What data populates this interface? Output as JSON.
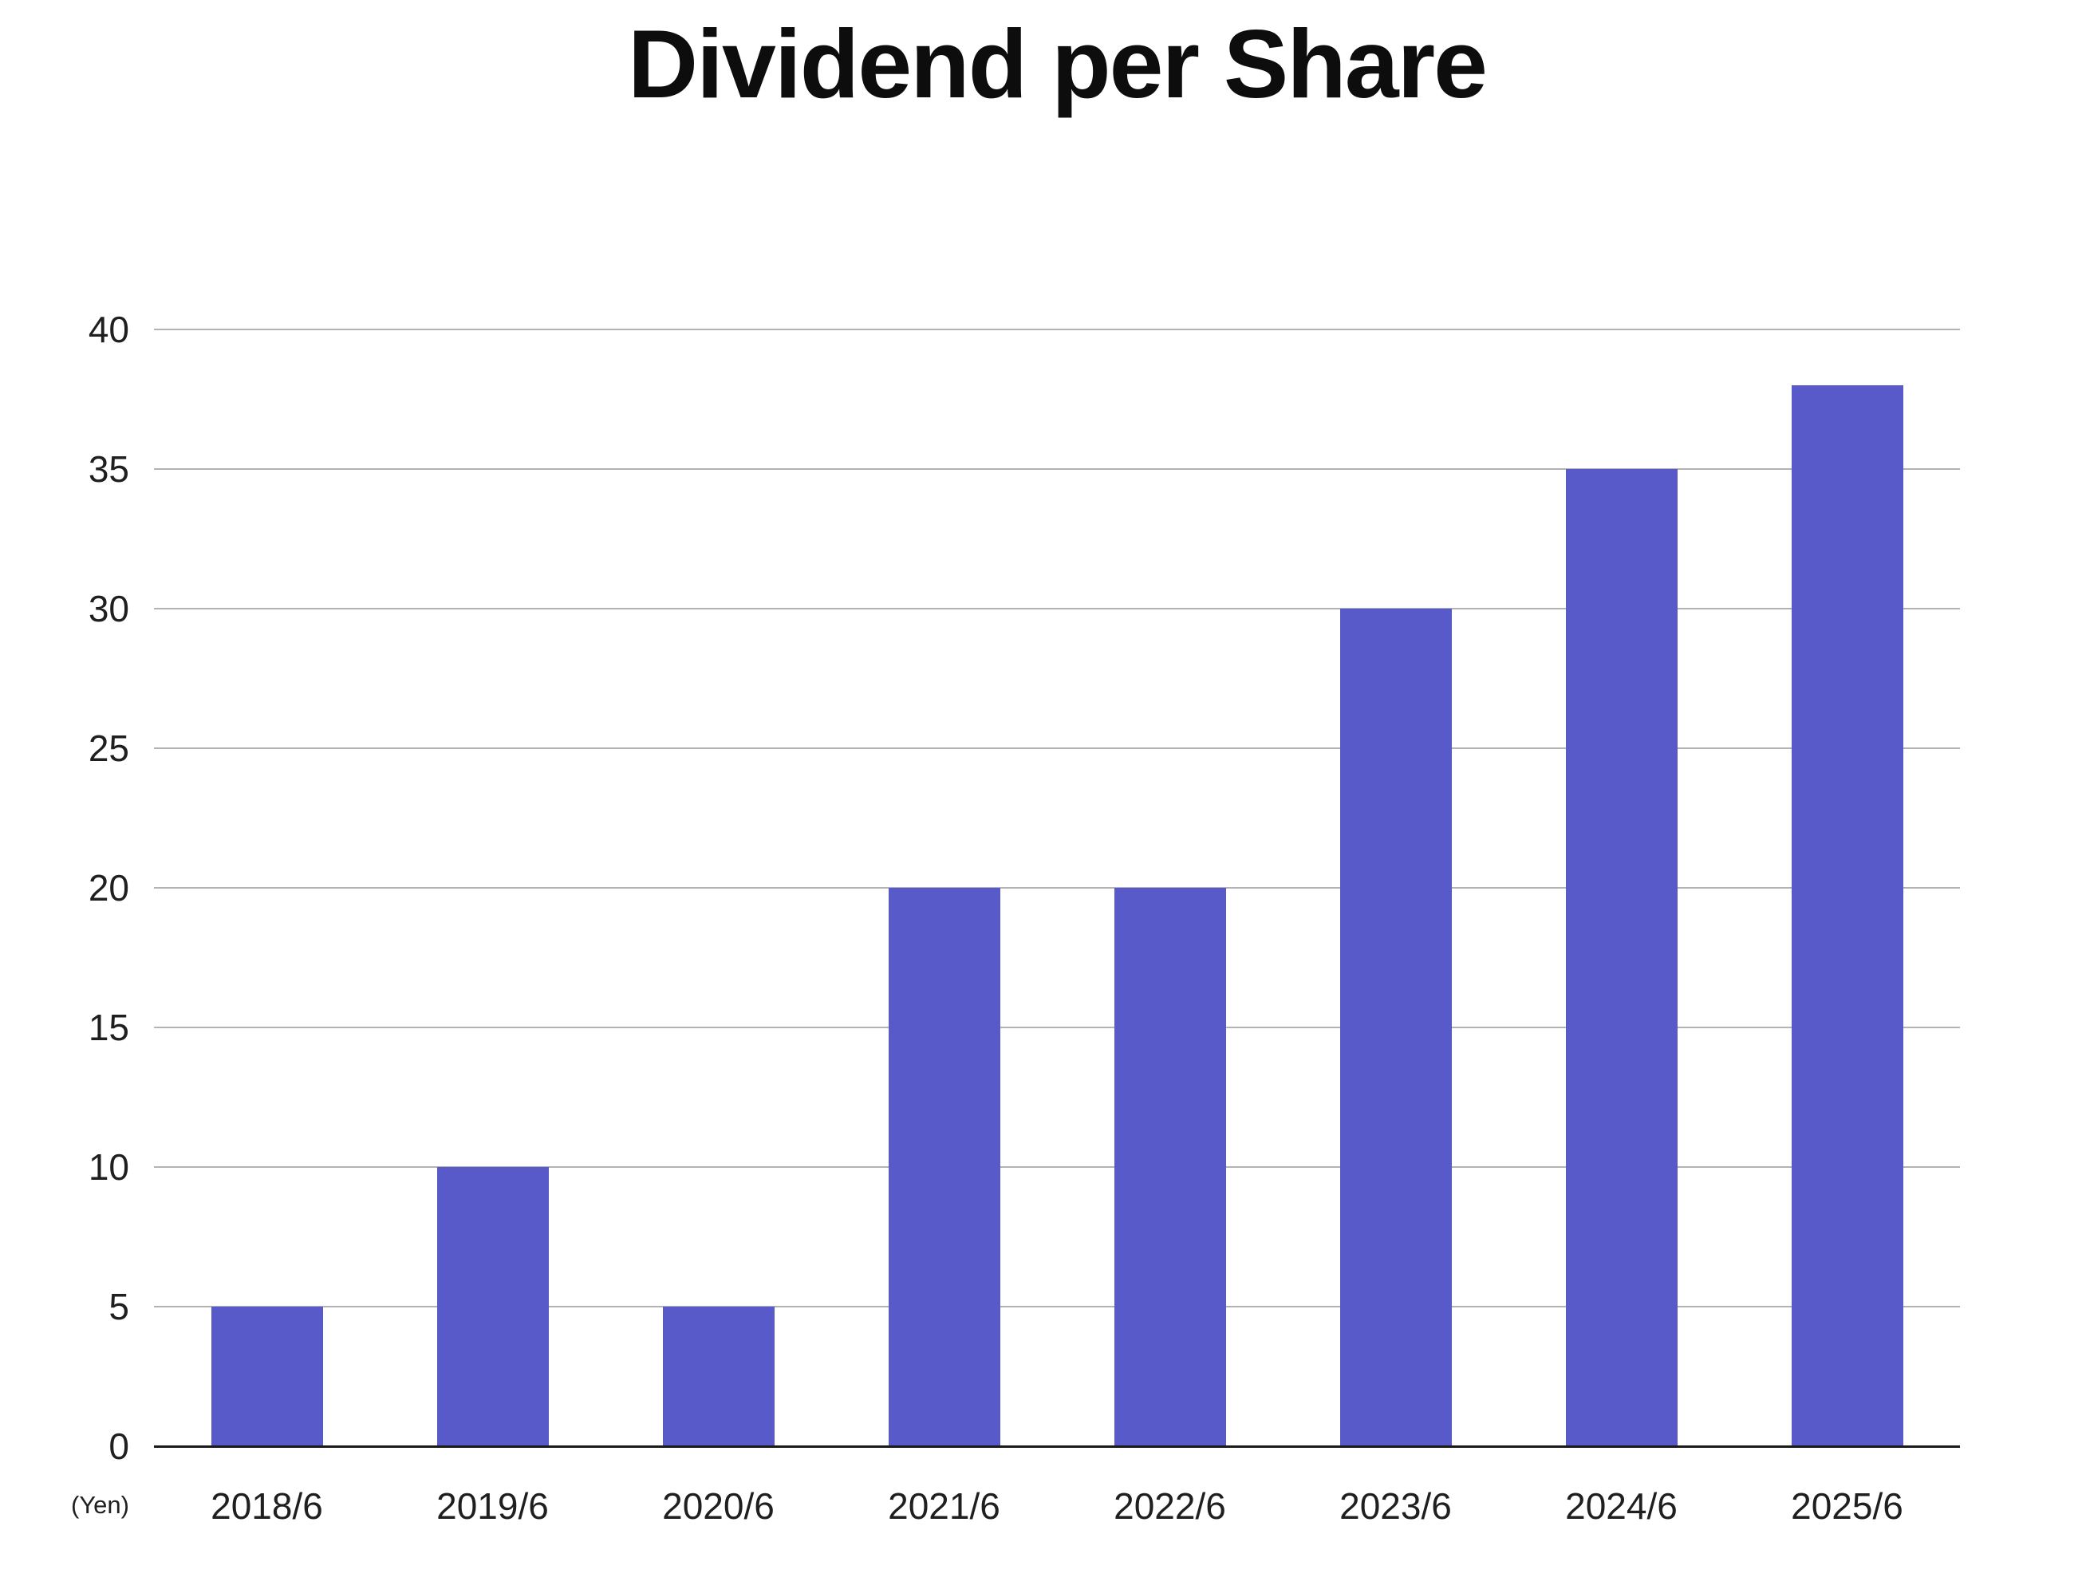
{
  "chart_data": {
    "type": "bar",
    "title": "Dividend per Share",
    "unit_label": "(Yen)",
    "categories": [
      "2018/6",
      "2019/6",
      "2020/6",
      "2021/6",
      "2022/6",
      "2023/6",
      "2024/6",
      "2025/6"
    ],
    "values": [
      5,
      10,
      5,
      20,
      20,
      30,
      35,
      38
    ],
    "xlabel": "",
    "ylabel": "(Yen)",
    "ylim": [
      0,
      40
    ],
    "ytick_step": 5,
    "yticks": [
      0,
      5,
      10,
      15,
      20,
      25,
      30,
      35,
      40
    ],
    "grid": "horizontal",
    "legend_position": "none",
    "colors": {
      "bar": "#575AC8",
      "gridline": "#b3b3b3",
      "axis": "#1a1a1a",
      "text": "#1f1f1f",
      "title": "#0d0d0d",
      "background": "#ffffff"
    }
  }
}
